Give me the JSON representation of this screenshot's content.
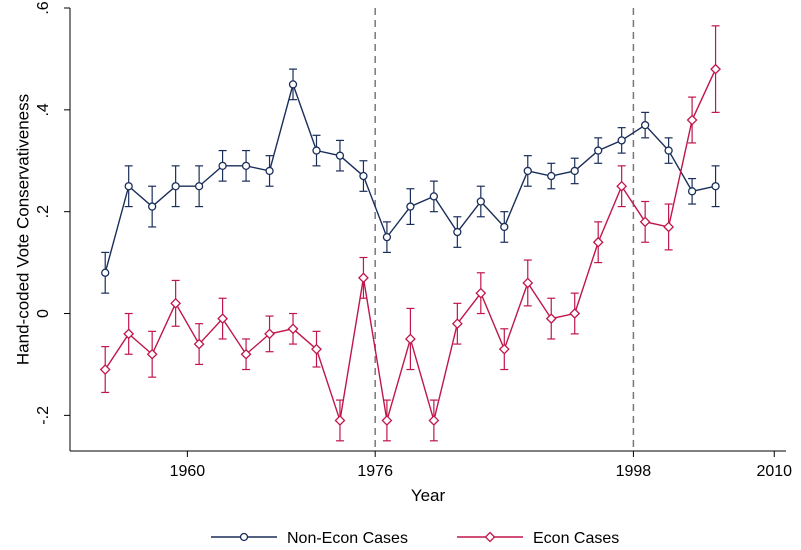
{
  "chart_data": {
    "type": "line",
    "title": "",
    "xlabel": "Year",
    "ylabel": "Hand-coded Vote Conservativeness",
    "xlim": [
      1950,
      2011
    ],
    "ylim": [
      -0.27,
      0.6
    ],
    "xticks": [
      1960,
      1976,
      1998,
      2010
    ],
    "yticks": [
      -0.2,
      0,
      0.2,
      0.4,
      0.6
    ],
    "ytick_labels": [
      "-.2",
      "0",
      ".2",
      ".4",
      ".6"
    ],
    "reference_lines_x": [
      1976,
      1998
    ],
    "grid": false,
    "legend_position": "bottom",
    "series": [
      {
        "name": "Non-Econ Cases",
        "color": "#1a2e5a",
        "marker": "circle",
        "x": [
          1953,
          1955,
          1957,
          1959,
          1961,
          1963,
          1965,
          1967,
          1969,
          1971,
          1973,
          1975,
          1977,
          1979,
          1981,
          1983,
          1985,
          1987,
          1989,
          1991,
          1993,
          1995,
          1997,
          1999,
          2001,
          2003,
          2005
        ],
        "y": [
          0.08,
          0.25,
          0.21,
          0.25,
          0.25,
          0.29,
          0.29,
          0.28,
          0.45,
          0.32,
          0.31,
          0.27,
          0.15,
          0.21,
          0.23,
          0.16,
          0.22,
          0.17,
          0.28,
          0.27,
          0.28,
          0.32,
          0.34,
          0.37,
          0.32,
          0.24,
          0.25
        ],
        "err": [
          0.04,
          0.04,
          0.04,
          0.04,
          0.04,
          0.03,
          0.03,
          0.03,
          0.03,
          0.03,
          0.03,
          0.03,
          0.03,
          0.035,
          0.03,
          0.03,
          0.03,
          0.03,
          0.03,
          0.025,
          0.025,
          0.025,
          0.025,
          0.025,
          0.025,
          0.025,
          0.04
        ]
      },
      {
        "name": "Econ Cases",
        "color": "#c0164b",
        "marker": "diamond",
        "x": [
          1953,
          1955,
          1957,
          1959,
          1961,
          1963,
          1965,
          1967,
          1969,
          1971,
          1973,
          1975,
          1977,
          1979,
          1981,
          1983,
          1985,
          1987,
          1989,
          1991,
          1993,
          1995,
          1997,
          1999,
          2001,
          2003,
          2005
        ],
        "y": [
          -0.11,
          -0.04,
          -0.08,
          0.02,
          -0.06,
          -0.01,
          -0.08,
          -0.04,
          -0.03,
          -0.07,
          -0.21,
          0.07,
          -0.21,
          -0.05,
          -0.21,
          -0.02,
          0.04,
          -0.07,
          0.06,
          -0.01,
          0.0,
          0.14,
          0.25,
          0.18,
          0.17,
          0.38,
          0.48
        ],
        "err": [
          0.045,
          0.04,
          0.045,
          0.045,
          0.04,
          0.04,
          0.03,
          0.035,
          0.03,
          0.035,
          0.04,
          0.04,
          0.04,
          0.06,
          0.04,
          0.04,
          0.04,
          0.04,
          0.045,
          0.04,
          0.04,
          0.04,
          0.04,
          0.04,
          0.045,
          0.045,
          0.085
        ]
      }
    ]
  }
}
